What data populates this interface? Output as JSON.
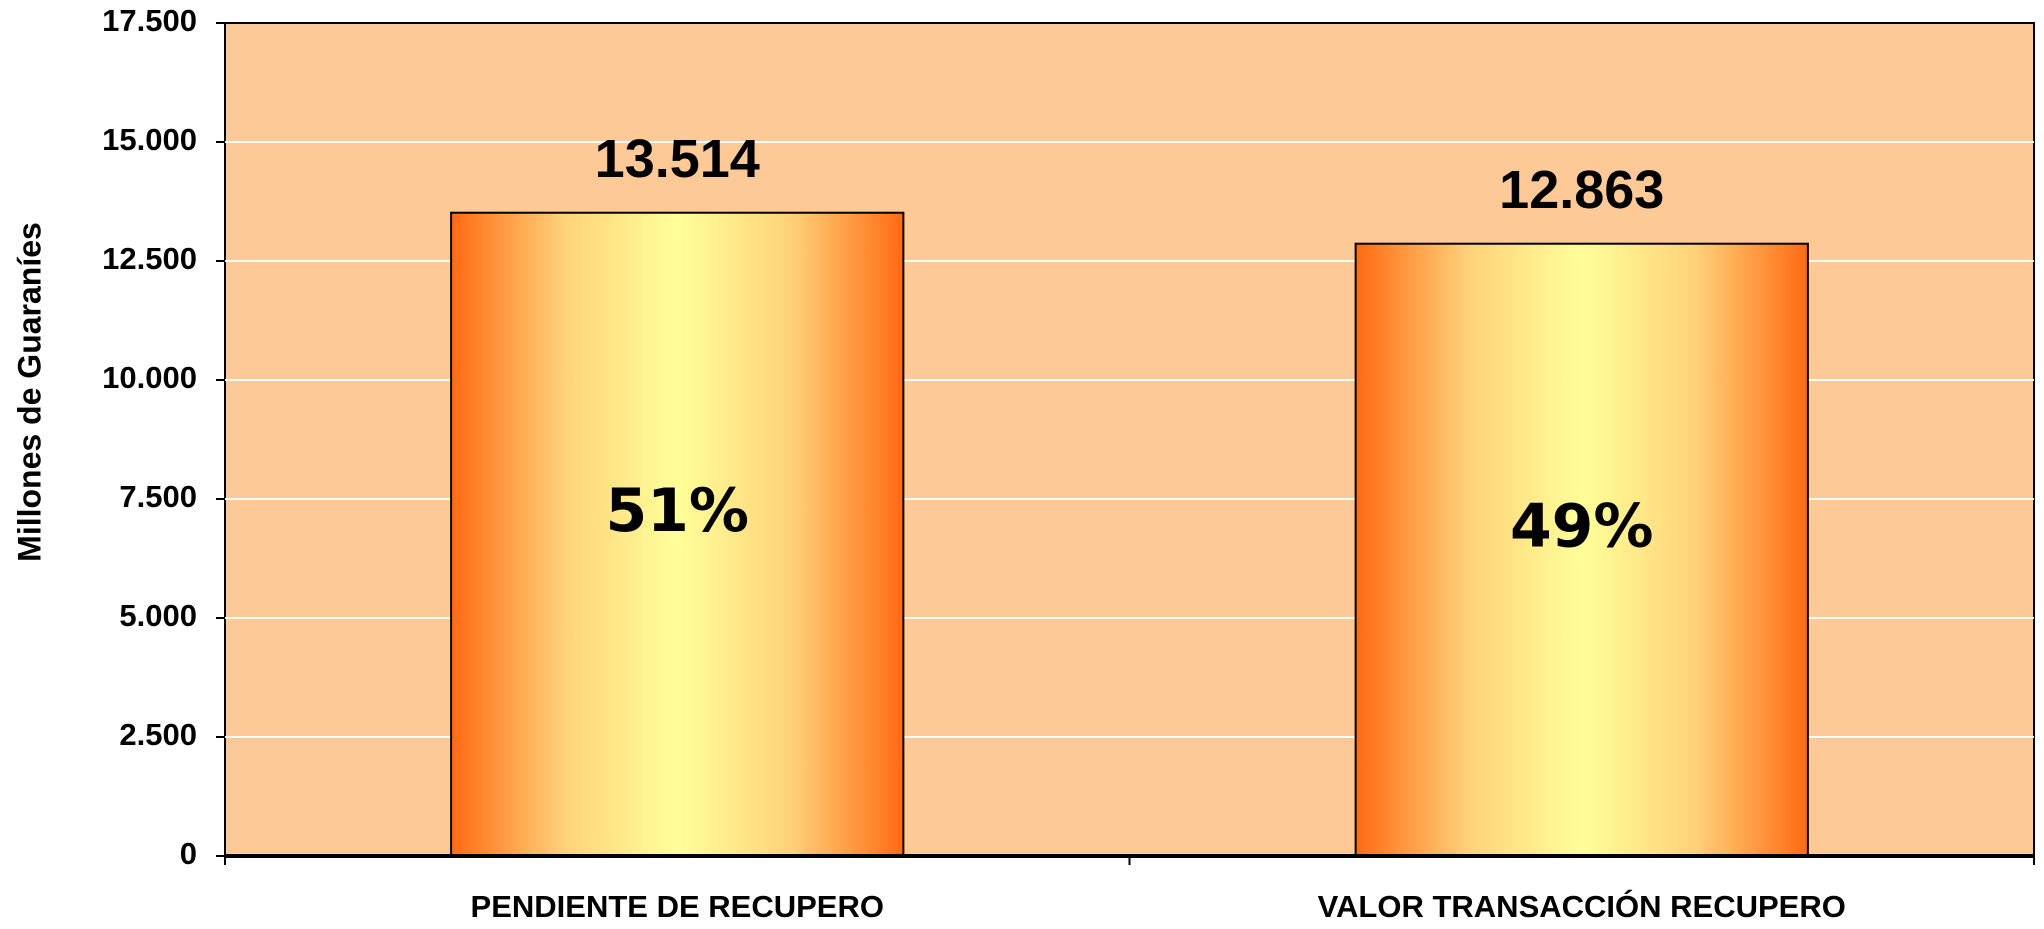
{
  "chart_data": {
    "type": "bar",
    "y_label": "Millones de Guaraníes",
    "categories": [
      "PENDIENTE DE RECUPERO",
      "VALOR TRANSACCIÓN RECUPERO"
    ],
    "values": [
      13514,
      12863
    ],
    "value_labels": [
      "13.514",
      "12.863"
    ],
    "shares": [
      51,
      49
    ],
    "share_labels": [
      "51%",
      "49%"
    ],
    "ylim": [
      0,
      17500
    ],
    "yticks": [
      0,
      {
        "value": 2500,
        "label": "2.500"
      },
      {
        "value": 5000,
        "label": "5.000"
      },
      {
        "value": 7500,
        "label": "7.500"
      },
      {
        "value": 10000,
        "label": "10.000"
      },
      {
        "value": 12500,
        "label": "12.500"
      },
      {
        "value": 15000,
        "label": "15.000"
      },
      {
        "value": 17500,
        "label": "17.500"
      }
    ],
    "grid": true
  }
}
